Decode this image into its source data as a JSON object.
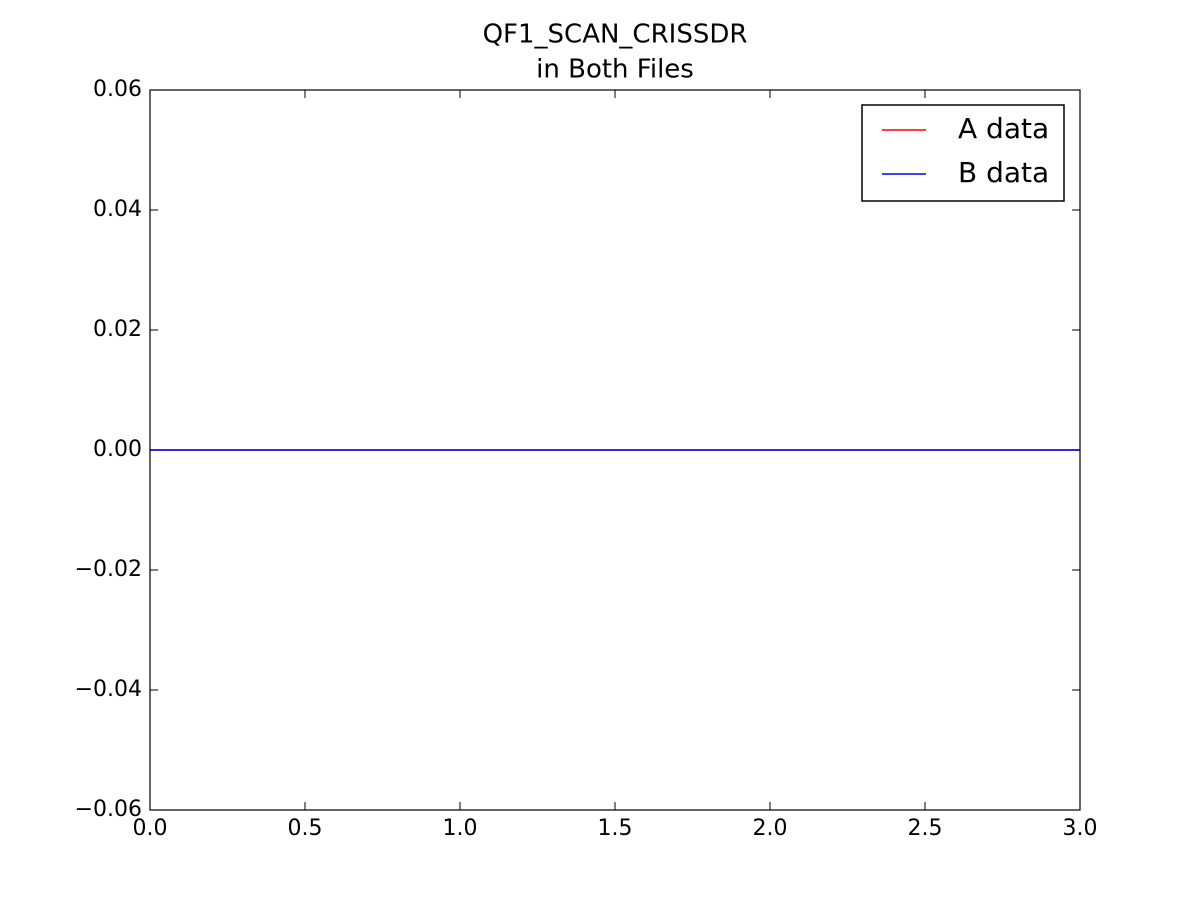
{
  "chart_data": {
    "type": "line",
    "title": "QF1_SCAN_CRISSDR",
    "subtitle": "in Both Files",
    "x": [
      0,
      1,
      2,
      3
    ],
    "series": [
      {
        "name": "A data",
        "color": "#ff0000",
        "values": [
          0,
          0,
          0,
          0
        ]
      },
      {
        "name": "B data",
        "color": "#0000ff",
        "values": [
          0,
          0,
          0,
          0
        ]
      }
    ],
    "xlim": [
      0,
      3
    ],
    "xticks": [
      {
        "value": 0,
        "label": "0.0"
      },
      {
        "value": 0.5,
        "label": "0.5"
      },
      {
        "value": 1,
        "label": "1.0"
      },
      {
        "value": 1.5,
        "label": "1.5"
      },
      {
        "value": 2,
        "label": "2.0"
      },
      {
        "value": 2.5,
        "label": "2.5"
      },
      {
        "value": 3,
        "label": "3.0"
      }
    ],
    "ylim": [
      -0.06,
      0.06
    ],
    "yticks": [
      {
        "value": -0.06,
        "label": "−0.06"
      },
      {
        "value": -0.04,
        "label": "−0.04"
      },
      {
        "value": -0.02,
        "label": "−0.02"
      },
      {
        "value": 0,
        "label": "0.00"
      },
      {
        "value": 0.02,
        "label": "0.02"
      },
      {
        "value": 0.04,
        "label": "0.04"
      },
      {
        "value": 0.06,
        "label": "0.06"
      }
    ],
    "grid": false,
    "legend": "upper right"
  }
}
